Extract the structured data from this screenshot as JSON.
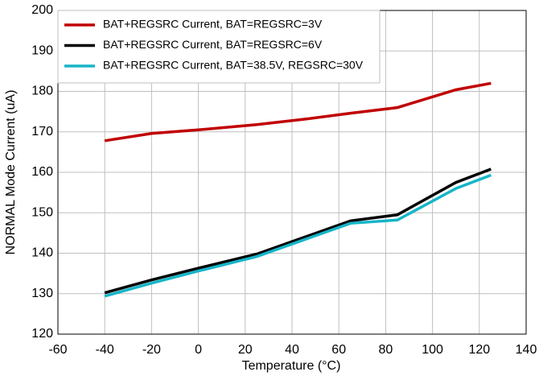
{
  "chart_data": {
    "type": "line",
    "xlabel": "Temperature (°C)",
    "ylabel": "NORMAL Mode Current (uA)",
    "x": [
      -40,
      -20,
      0,
      25,
      45,
      65,
      85,
      110,
      125
    ],
    "series": [
      {
        "name": "BAT+REGSRC Current, BAT=REGSRC=3V",
        "color": "#c00000",
        "values": [
          167.8,
          169.6,
          170.5,
          171.8,
          173.1,
          174.6,
          176.0,
          180.4,
          182.0
        ]
      },
      {
        "name": "BAT+REGSRC Current, BAT=REGSRC=6V",
        "color": "#000000",
        "values": [
          130.2,
          133.4,
          136.3,
          139.8,
          143.9,
          148.0,
          149.5,
          157.5,
          160.8
        ]
      },
      {
        "name": "BAT+REGSRC Current, BAT=38.5V, REGSRC=30V",
        "color": "#17b5c8",
        "values": [
          129.4,
          132.6,
          135.6,
          139.2,
          143.3,
          147.4,
          148.2,
          156.0,
          159.3
        ]
      }
    ],
    "xlim": [
      -60,
      140
    ],
    "xticks": [
      -60,
      -40,
      -20,
      0,
      20,
      40,
      60,
      80,
      100,
      120,
      140
    ],
    "ylim": [
      120,
      200
    ],
    "yticks": [
      120,
      130,
      140,
      150,
      160,
      170,
      180,
      190,
      200
    ],
    "grid": true,
    "legend": "upper left"
  }
}
